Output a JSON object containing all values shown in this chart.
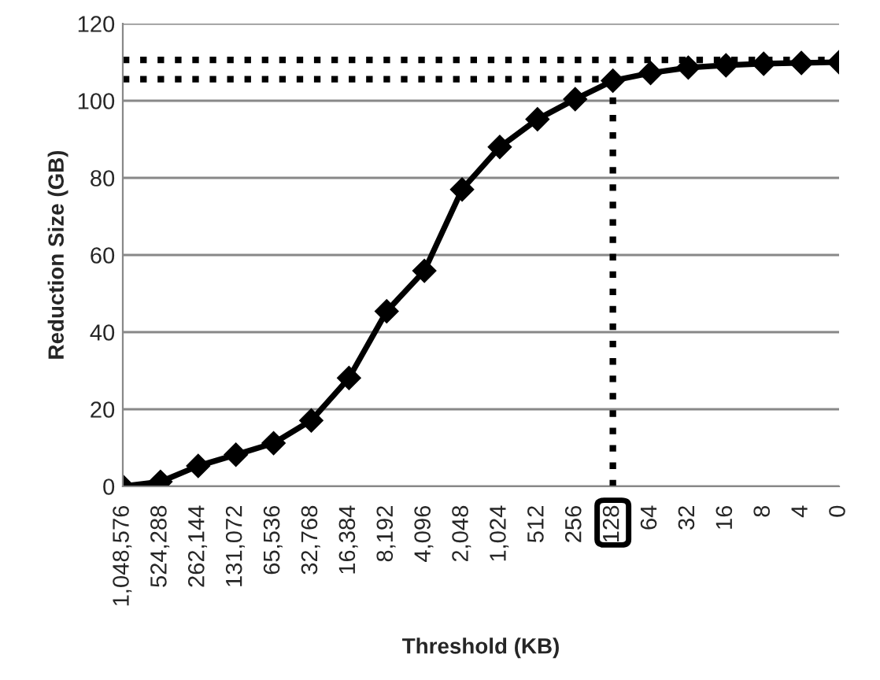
{
  "chart_data": {
    "type": "line",
    "xlabel": "Threshold (KB)",
    "ylabel": "Reduction Size (GB)",
    "categories": [
      "1,048,576",
      "524,288",
      "262,144",
      "131,072",
      "65,536",
      "32,768",
      "16,384",
      "8,192",
      "4,096",
      "2,048",
      "1,024",
      "512",
      "256",
      "128",
      "64",
      "32",
      "16",
      "8",
      "4",
      "0"
    ],
    "series": [
      {
        "color": "#000000",
        "values": [
          0,
          1.2,
          5.3,
          8.2,
          11.2,
          17.1,
          28.1,
          45.4,
          55.9,
          77,
          88,
          95.2,
          100.4,
          105.2,
          107.2,
          108.6,
          109.2,
          109.6,
          109.8,
          110
        ]
      }
    ],
    "ylim": [
      0,
      120
    ],
    "yticks": [
      0,
      20,
      40,
      60,
      80,
      100,
      120
    ],
    "grid": "y",
    "marker": "diamond",
    "line_style": "solid",
    "legend": false,
    "ref_lines": [
      {
        "axis": "y",
        "value": 110.6,
        "color": "#000000",
        "line_style": "dotted"
      },
      {
        "axis": "y",
        "value": 105.6,
        "color": "#000000",
        "line_style": "dotted"
      },
      {
        "axis": "x",
        "value": "128",
        "color": "#000000",
        "line_style": "dotted"
      }
    ]
  }
}
